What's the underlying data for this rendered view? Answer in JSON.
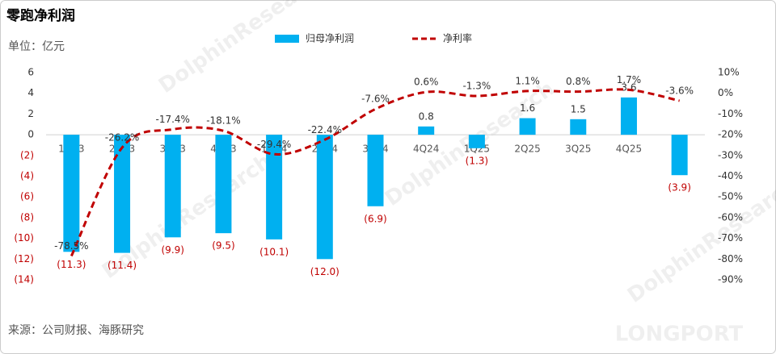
{
  "chart_data": {
    "type": "bar-line",
    "title": "零跑净利润",
    "subtitle": "单位：亿元",
    "source": "来源：公司财报、海豚研究",
    "watermarks": [
      "DolphinResearch",
      "LONGPORT"
    ],
    "categories": [
      "1Q23",
      "2Q23",
      "3Q23",
      "4Q23",
      "1Q24",
      "2Q24",
      "3Q24",
      "4Q24",
      "1Q25",
      "2Q25",
      "3Q25",
      "4Q25",
      null
    ],
    "series": [
      {
        "name": "归母净利润",
        "type": "bar",
        "color": "#00b0f0",
        "values": [
          -11.3,
          -11.4,
          -9.9,
          -9.5,
          -10.1,
          -12.0,
          -6.9,
          0.8,
          -1.3,
          1.6,
          1.5,
          3.6,
          -3.9
        ],
        "value_labels": [
          "(11.3)",
          "(11.4)",
          "(9.9)",
          "(9.5)",
          "(10.1)",
          "(12.0)",
          "(6.9)",
          "0.8",
          "(1.3)",
          "1.6",
          "1.5",
          "3.6",
          "(3.9)"
        ]
      },
      {
        "name": "净利率",
        "type": "line",
        "axis": "y2",
        "color": "#c00000",
        "values": [
          -78.5,
          -26.2,
          -17.4,
          -18.1,
          -29.4,
          -22.4,
          -7.6,
          0.6,
          -1.3,
          1.1,
          0.8,
          1.7,
          -3.6
        ],
        "value_labels": [
          "-78.5%",
          "-26.2%",
          "-17.4%",
          "-18.1%",
          "-29.4%",
          "-22.4%",
          "-7.6%",
          "0.6%",
          "-1.3%",
          "1.1%",
          "0.8%",
          "1.7%",
          "-3.6%"
        ]
      }
    ],
    "ylim": [
      -14,
      6
    ],
    "yticks": [
      6,
      4,
      2,
      0,
      {
        "value": -2,
        "label": "(2)"
      },
      {
        "value": -4,
        "label": "(4)"
      },
      {
        "value": -6,
        "label": "(6)"
      },
      {
        "value": -8,
        "label": "(8)"
      },
      {
        "value": -10,
        "label": "(10)"
      },
      {
        "value": -12,
        "label": "(12)"
      },
      {
        "value": -14,
        "label": "(14)"
      }
    ],
    "y2lim": [
      -90,
      10
    ],
    "y2ticks": [
      {
        "value": 10,
        "label": "10%"
      },
      {
        "value": 0,
        "label": "0%"
      },
      {
        "value": -10,
        "label": "-10%"
      },
      {
        "value": -20,
        "label": "-20%"
      },
      {
        "value": -30,
        "label": "-30%"
      },
      {
        "value": -40,
        "label": "-40%"
      },
      {
        "value": -50,
        "label": "-50%"
      },
      {
        "value": -60,
        "label": "-60%"
      },
      {
        "value": -70,
        "label": "-70%"
      },
      {
        "value": -80,
        "label": "-80%"
      },
      {
        "value": -90,
        "label": "-90%"
      }
    ]
  }
}
